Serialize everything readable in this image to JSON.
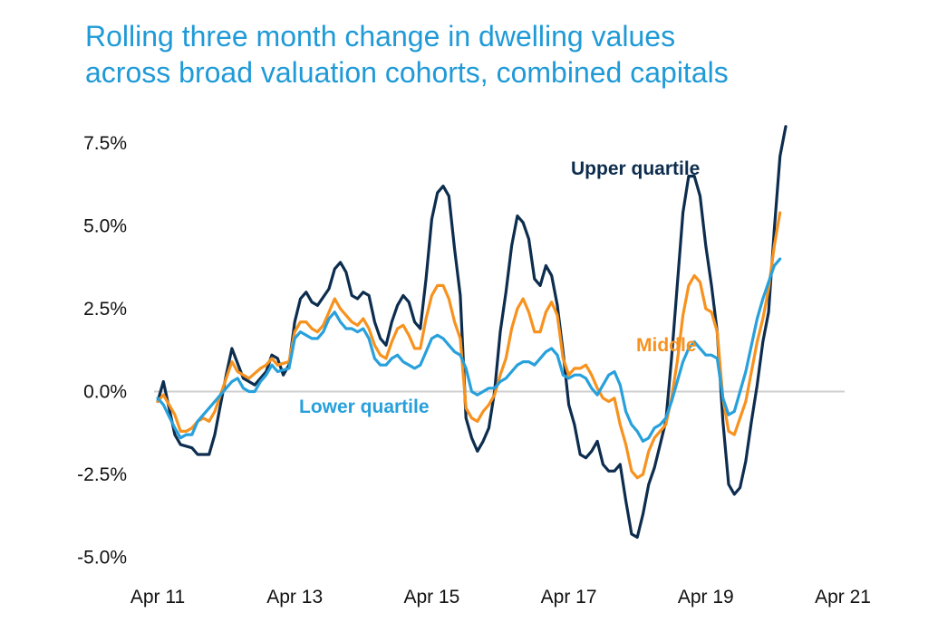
{
  "title_lines": [
    "Rolling three month change in dwelling values",
    "across broad valuation cohorts, combined capitals"
  ],
  "colors": {
    "title": "#1f9ad7",
    "upper": "#0d2d4e",
    "middle": "#f7921e",
    "lower": "#27a0db",
    "zero_line": "#cfcfcf"
  },
  "chart_data": {
    "type": "line",
    "title": "Rolling three month change in dwelling values across broad valuation cohorts, combined capitals",
    "xlabel": "",
    "ylabel": "",
    "ylim": [
      -5.0,
      8.0
    ],
    "y_ticks": [
      7.5,
      5.0,
      2.5,
      0.0,
      -2.5,
      -5.0
    ],
    "y_tick_labels": [
      "7.5%",
      "5.0%",
      "2.5%",
      "0.0%",
      "-2.5%",
      "-5.0%"
    ],
    "x_tick_labels": [
      "Apr 11",
      "Apr 13",
      "Apr 15",
      "Apr 17",
      "Apr 19",
      "Apr 21"
    ],
    "x_ticks": [
      0,
      24,
      48,
      72,
      96,
      120
    ],
    "x_unit": "months since Apr 11",
    "grid": false,
    "zero_line": true,
    "series": [
      {
        "name": "Upper quartile",
        "color": "#0d2d4e",
        "points": [
          [
            0,
            -0.3
          ],
          [
            1,
            0.3
          ],
          [
            3,
            -1.3
          ],
          [
            4,
            -1.6
          ],
          [
            6,
            -1.7
          ],
          [
            7,
            -1.9
          ],
          [
            9,
            -1.9
          ],
          [
            10,
            -1.3
          ],
          [
            12,
            0.5
          ],
          [
            13,
            1.3
          ],
          [
            15,
            0.4
          ],
          [
            16,
            0.3
          ],
          [
            17,
            0.2
          ],
          [
            19,
            0.6
          ],
          [
            20,
            1.1
          ],
          [
            21,
            1.0
          ],
          [
            22,
            0.5
          ],
          [
            23,
            0.8
          ],
          [
            24,
            2.1
          ],
          [
            25,
            2.8
          ],
          [
            26,
            3.0
          ],
          [
            27,
            2.7
          ],
          [
            28,
            2.6
          ],
          [
            30,
            3.1
          ],
          [
            31,
            3.7
          ],
          [
            32,
            3.9
          ],
          [
            33,
            3.6
          ],
          [
            34,
            2.9
          ],
          [
            35,
            2.8
          ],
          [
            36,
            3.0
          ],
          [
            37,
            2.9
          ],
          [
            38,
            2.1
          ],
          [
            39,
            1.6
          ],
          [
            40,
            1.4
          ],
          [
            41,
            2.1
          ],
          [
            42,
            2.6
          ],
          [
            43,
            2.9
          ],
          [
            44,
            2.7
          ],
          [
            45,
            2.1
          ],
          [
            46,
            1.9
          ],
          [
            47,
            3.4
          ],
          [
            48,
            5.2
          ],
          [
            49,
            6.0
          ],
          [
            50,
            6.2
          ],
          [
            51,
            5.9
          ],
          [
            52,
            4.3
          ],
          [
            53,
            2.9
          ],
          [
            54,
            -0.8
          ],
          [
            55,
            -1.4
          ],
          [
            56,
            -1.8
          ],
          [
            57,
            -1.5
          ],
          [
            58,
            -1.1
          ],
          [
            59,
            0.0
          ],
          [
            60,
            1.8
          ],
          [
            61,
            3.0
          ],
          [
            62,
            4.4
          ],
          [
            63,
            5.3
          ],
          [
            64,
            5.1
          ],
          [
            65,
            4.6
          ],
          [
            66,
            3.4
          ],
          [
            67,
            3.2
          ],
          [
            68,
            3.8
          ],
          [
            69,
            3.5
          ],
          [
            70,
            2.6
          ],
          [
            71,
            1.2
          ],
          [
            72,
            -0.4
          ],
          [
            73,
            -1.0
          ],
          [
            74,
            -1.9
          ],
          [
            75,
            -2.0
          ],
          [
            76,
            -1.8
          ],
          [
            77,
            -1.5
          ],
          [
            78,
            -2.2
          ],
          [
            79,
            -2.4
          ],
          [
            80,
            -2.4
          ],
          [
            81,
            -2.2
          ],
          [
            82,
            -3.3
          ],
          [
            83,
            -4.3
          ],
          [
            84,
            -4.4
          ],
          [
            85,
            -3.7
          ],
          [
            86,
            -2.8
          ],
          [
            87,
            -2.3
          ],
          [
            88,
            -1.6
          ],
          [
            89,
            -0.9
          ],
          [
            90,
            1.0
          ],
          [
            91,
            3.2
          ],
          [
            92,
            5.4
          ],
          [
            93,
            6.5
          ],
          [
            94,
            6.5
          ],
          [
            95,
            5.9
          ],
          [
            96,
            4.4
          ],
          [
            97,
            3.2
          ],
          [
            98,
            1.8
          ],
          [
            99,
            -0.9
          ],
          [
            100,
            -2.8
          ],
          [
            101,
            -3.1
          ],
          [
            102,
            -2.9
          ],
          [
            103,
            -2.1
          ],
          [
            104,
            -0.9
          ],
          [
            105,
            0.2
          ],
          [
            106,
            1.5
          ],
          [
            107,
            2.4
          ],
          [
            108,
            4.9
          ],
          [
            109,
            7.1
          ],
          [
            110,
            8.0
          ]
        ]
      },
      {
        "name": "Middle",
        "color": "#f7921e",
        "points": [
          [
            0,
            -0.3
          ],
          [
            1,
            -0.1
          ],
          [
            3,
            -0.7
          ],
          [
            4,
            -1.2
          ],
          [
            5,
            -1.2
          ],
          [
            6,
            -1.1
          ],
          [
            7,
            -0.9
          ],
          [
            8,
            -0.8
          ],
          [
            9,
            -0.9
          ],
          [
            10,
            -0.6
          ],
          [
            12,
            0.4
          ],
          [
            13,
            0.9
          ],
          [
            14,
            0.6
          ],
          [
            15,
            0.5
          ],
          [
            16,
            0.4
          ],
          [
            18,
            0.7
          ],
          [
            19,
            0.8
          ],
          [
            20,
            1.0
          ],
          [
            21,
            0.8
          ],
          [
            23,
            0.9
          ],
          [
            24,
            1.8
          ],
          [
            25,
            2.1
          ],
          [
            26,
            2.1
          ],
          [
            27,
            1.9
          ],
          [
            28,
            1.8
          ],
          [
            29,
            2.0
          ],
          [
            30,
            2.4
          ],
          [
            31,
            2.8
          ],
          [
            32,
            2.5
          ],
          [
            33,
            2.3
          ],
          [
            34,
            2.1
          ],
          [
            35,
            2.0
          ],
          [
            36,
            2.2
          ],
          [
            37,
            1.9
          ],
          [
            38,
            1.4
          ],
          [
            39,
            1.1
          ],
          [
            40,
            1.0
          ],
          [
            41,
            1.5
          ],
          [
            42,
            1.9
          ],
          [
            43,
            2.0
          ],
          [
            44,
            1.7
          ],
          [
            45,
            1.3
          ],
          [
            46,
            1.3
          ],
          [
            47,
            2.2
          ],
          [
            48,
            2.9
          ],
          [
            49,
            3.2
          ],
          [
            50,
            3.2
          ],
          [
            51,
            2.8
          ],
          [
            52,
            2.1
          ],
          [
            53,
            1.6
          ],
          [
            54,
            -0.5
          ],
          [
            55,
            -0.8
          ],
          [
            56,
            -0.9
          ],
          [
            57,
            -0.6
          ],
          [
            58,
            -0.4
          ],
          [
            59,
            -0.1
          ],
          [
            60,
            0.5
          ],
          [
            61,
            1.0
          ],
          [
            62,
            1.9
          ],
          [
            63,
            2.5
          ],
          [
            64,
            2.8
          ],
          [
            65,
            2.4
          ],
          [
            66,
            1.8
          ],
          [
            67,
            1.8
          ],
          [
            68,
            2.4
          ],
          [
            69,
            2.7
          ],
          [
            70,
            2.3
          ],
          [
            71,
            1.0
          ],
          [
            72,
            0.5
          ],
          [
            73,
            0.7
          ],
          [
            74,
            0.7
          ],
          [
            75,
            0.8
          ],
          [
            76,
            0.5
          ],
          [
            77,
            0.1
          ],
          [
            78,
            -0.2
          ],
          [
            79,
            -0.3
          ],
          [
            80,
            -0.2
          ],
          [
            81,
            -1.0
          ],
          [
            82,
            -1.6
          ],
          [
            83,
            -2.4
          ],
          [
            84,
            -2.6
          ],
          [
            85,
            -2.5
          ],
          [
            86,
            -1.8
          ],
          [
            87,
            -1.4
          ],
          [
            88,
            -1.2
          ],
          [
            89,
            -1.0
          ],
          [
            90,
            -0.2
          ],
          [
            91,
            0.9
          ],
          [
            92,
            2.3
          ],
          [
            93,
            3.2
          ],
          [
            94,
            3.5
          ],
          [
            95,
            3.3
          ],
          [
            96,
            2.5
          ],
          [
            97,
            2.4
          ],
          [
            98,
            1.8
          ],
          [
            99,
            -0.2
          ],
          [
            100,
            -1.2
          ],
          [
            101,
            -1.3
          ],
          [
            102,
            -0.8
          ],
          [
            103,
            -0.3
          ],
          [
            104,
            0.6
          ],
          [
            105,
            1.5
          ],
          [
            106,
            2.2
          ],
          [
            107,
            3.1
          ],
          [
            108,
            4.4
          ],
          [
            109,
            5.4
          ]
        ]
      },
      {
        "name": "Lower quartile",
        "color": "#27a0db",
        "points": [
          [
            0,
            -0.2
          ],
          [
            1,
            -0.4
          ],
          [
            3,
            -1.1
          ],
          [
            4,
            -1.4
          ],
          [
            5,
            -1.3
          ],
          [
            6,
            -1.3
          ],
          [
            7,
            -0.9
          ],
          [
            8,
            -0.7
          ],
          [
            9,
            -0.5
          ],
          [
            10,
            -0.3
          ],
          [
            12,
            0.1
          ],
          [
            13,
            0.3
          ],
          [
            14,
            0.4
          ],
          [
            15,
            0.1
          ],
          [
            16,
            0.0
          ],
          [
            17,
            0.0
          ],
          [
            18,
            0.3
          ],
          [
            19,
            0.5
          ],
          [
            20,
            0.8
          ],
          [
            21,
            0.6
          ],
          [
            23,
            0.7
          ],
          [
            24,
            1.6
          ],
          [
            25,
            1.8
          ],
          [
            26,
            1.7
          ],
          [
            27,
            1.6
          ],
          [
            28,
            1.6
          ],
          [
            29,
            1.8
          ],
          [
            30,
            2.2
          ],
          [
            31,
            2.4
          ],
          [
            32,
            2.1
          ],
          [
            33,
            1.9
          ],
          [
            34,
            1.9
          ],
          [
            35,
            1.8
          ],
          [
            36,
            1.9
          ],
          [
            37,
            1.6
          ],
          [
            38,
            1.0
          ],
          [
            39,
            0.8
          ],
          [
            40,
            0.8
          ],
          [
            41,
            1.0
          ],
          [
            42,
            1.1
          ],
          [
            43,
            0.9
          ],
          [
            44,
            0.8
          ],
          [
            45,
            0.7
          ],
          [
            46,
            0.8
          ],
          [
            47,
            1.2
          ],
          [
            48,
            1.6
          ],
          [
            49,
            1.7
          ],
          [
            50,
            1.6
          ],
          [
            51,
            1.4
          ],
          [
            52,
            1.2
          ],
          [
            53,
            1.1
          ],
          [
            54,
            0.7
          ],
          [
            55,
            0.0
          ],
          [
            56,
            -0.1
          ],
          [
            57,
            0.0
          ],
          [
            58,
            0.1
          ],
          [
            59,
            0.1
          ],
          [
            60,
            0.3
          ],
          [
            61,
            0.4
          ],
          [
            62,
            0.6
          ],
          [
            63,
            0.8
          ],
          [
            64,
            0.9
          ],
          [
            65,
            0.9
          ],
          [
            66,
            0.8
          ],
          [
            67,
            1.0
          ],
          [
            68,
            1.2
          ],
          [
            69,
            1.3
          ],
          [
            70,
            1.1
          ],
          [
            71,
            0.5
          ],
          [
            72,
            0.4
          ],
          [
            73,
            0.5
          ],
          [
            74,
            0.5
          ],
          [
            75,
            0.4
          ],
          [
            76,
            0.1
          ],
          [
            77,
            -0.1
          ],
          [
            78,
            0.2
          ],
          [
            79,
            0.5
          ],
          [
            80,
            0.6
          ],
          [
            81,
            0.2
          ],
          [
            82,
            -0.6
          ],
          [
            83,
            -1.0
          ],
          [
            84,
            -1.2
          ],
          [
            85,
            -1.5
          ],
          [
            86,
            -1.4
          ],
          [
            87,
            -1.1
          ],
          [
            88,
            -1.0
          ],
          [
            89,
            -0.8
          ],
          [
            90,
            -0.3
          ],
          [
            91,
            0.3
          ],
          [
            92,
            0.9
          ],
          [
            93,
            1.3
          ],
          [
            94,
            1.5
          ],
          [
            95,
            1.3
          ],
          [
            96,
            1.1
          ],
          [
            97,
            1.1
          ],
          [
            98,
            1.0
          ],
          [
            99,
            -0.2
          ],
          [
            100,
            -0.7
          ],
          [
            101,
            -0.6
          ],
          [
            102,
            0.0
          ],
          [
            103,
            0.6
          ],
          [
            104,
            1.4
          ],
          [
            105,
            2.2
          ],
          [
            106,
            2.8
          ],
          [
            107,
            3.3
          ],
          [
            108,
            3.8
          ],
          [
            109,
            4.0
          ]
        ]
      }
    ],
    "annotations": [
      "Upper quartile",
      "Middle",
      "Lower quartile"
    ]
  }
}
